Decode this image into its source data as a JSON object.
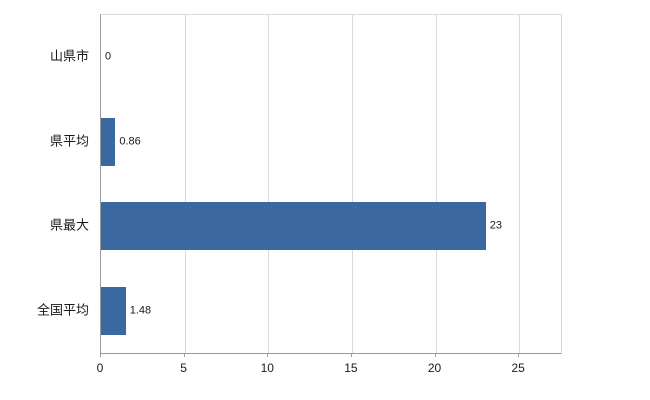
{
  "chart_data": {
    "type": "bar",
    "orientation": "horizontal",
    "title": "",
    "categories": [
      "山県市",
      "県平均",
      "県最大",
      "全国平均"
    ],
    "values": [
      0,
      0.86,
      23,
      1.48
    ],
    "value_labels": [
      "0",
      "0.86",
      "23",
      "1.48"
    ],
    "x_ticks": [
      0,
      5,
      10,
      15,
      20,
      25
    ],
    "x_tick_labels": [
      "0",
      "5",
      "10",
      "15",
      "20",
      "25"
    ],
    "xlim": [
      0,
      27.5
    ],
    "grid": "vertical",
    "legend": "none",
    "bar_color": "#3a689f",
    "grid_color": "#d9d9d9",
    "axis_color": "#9b9b9b",
    "background_color": "#ffffff"
  }
}
